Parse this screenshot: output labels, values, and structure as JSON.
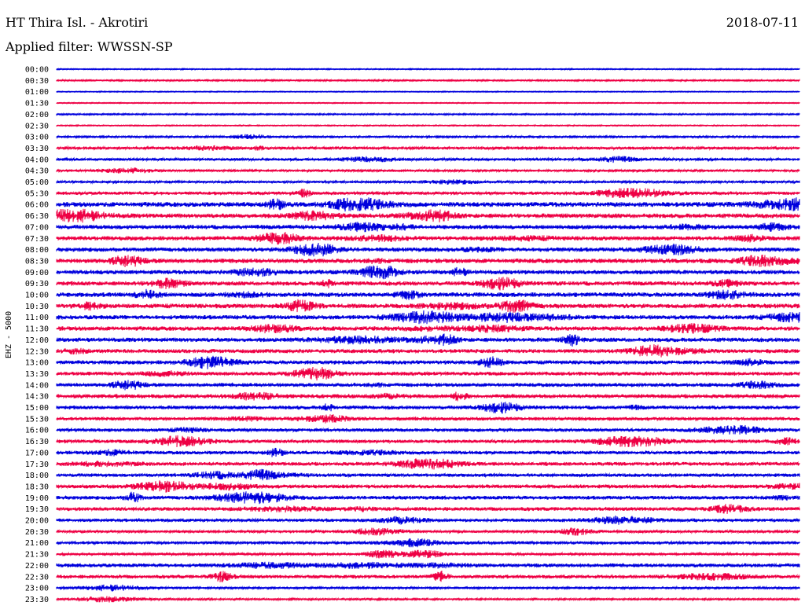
{
  "header": {
    "station": "HT Thira Isl. - Akrotiri",
    "date": "2018-07-11",
    "filter": "Applied filter: WWSSN-SP"
  },
  "chart_data": {
    "type": "helicorder",
    "channel_label": "EHZ - 5000",
    "colors": [
      "#0000dd",
      "#ee0044"
    ],
    "rows": [
      {
        "time": "00:00",
        "activity": 0.3
      },
      {
        "time": "00:30",
        "activity": 0.5
      },
      {
        "time": "01:00",
        "activity": 0.2
      },
      {
        "time": "01:30",
        "activity": 0.2
      },
      {
        "time": "02:00",
        "activity": 0.5
      },
      {
        "time": "02:30",
        "activity": 0.3
      },
      {
        "time": "03:00",
        "activity": 0.8
      },
      {
        "time": "03:30",
        "activity": 1.6
      },
      {
        "time": "04:00",
        "activity": 1.4
      },
      {
        "time": "04:30",
        "activity": 1.0
      },
      {
        "time": "05:00",
        "activity": 1.2
      },
      {
        "time": "05:30",
        "activity": 1.8
      },
      {
        "time": "06:00",
        "activity": 3.0
      },
      {
        "time": "06:30",
        "activity": 2.8
      },
      {
        "time": "07:00",
        "activity": 2.6
      },
      {
        "time": "07:30",
        "activity": 2.6
      },
      {
        "time": "08:00",
        "activity": 2.6
      },
      {
        "time": "08:30",
        "activity": 2.8
      },
      {
        "time": "09:00",
        "activity": 2.6
      },
      {
        "time": "09:30",
        "activity": 2.6
      },
      {
        "time": "10:00",
        "activity": 2.8
      },
      {
        "time": "10:30",
        "activity": 2.8
      },
      {
        "time": "11:00",
        "activity": 2.6
      },
      {
        "time": "11:30",
        "activity": 2.6
      },
      {
        "time": "12:00",
        "activity": 2.6
      },
      {
        "time": "12:30",
        "activity": 2.4
      },
      {
        "time": "13:00",
        "activity": 2.4
      },
      {
        "time": "13:30",
        "activity": 2.2
      },
      {
        "time": "14:00",
        "activity": 2.2
      },
      {
        "time": "14:30",
        "activity": 2.4
      },
      {
        "time": "15:00",
        "activity": 2.2
      },
      {
        "time": "15:30",
        "activity": 2.0
      },
      {
        "time": "16:00",
        "activity": 2.0
      },
      {
        "time": "16:30",
        "activity": 2.0
      },
      {
        "time": "17:00",
        "activity": 2.0
      },
      {
        "time": "17:30",
        "activity": 2.2
      },
      {
        "time": "18:00",
        "activity": 2.0
      },
      {
        "time": "18:30",
        "activity": 2.2
      },
      {
        "time": "19:00",
        "activity": 2.2
      },
      {
        "time": "19:30",
        "activity": 2.2
      },
      {
        "time": "20:00",
        "activity": 1.8
      },
      {
        "time": "20:30",
        "activity": 1.4
      },
      {
        "time": "21:00",
        "activity": 1.8
      },
      {
        "time": "21:30",
        "activity": 1.4
      },
      {
        "time": "22:00",
        "activity": 2.2
      },
      {
        "time": "22:30",
        "activity": 2.0
      },
      {
        "time": "23:00",
        "activity": 1.0
      },
      {
        "time": "23:30",
        "activity": 0.8
      }
    ]
  }
}
